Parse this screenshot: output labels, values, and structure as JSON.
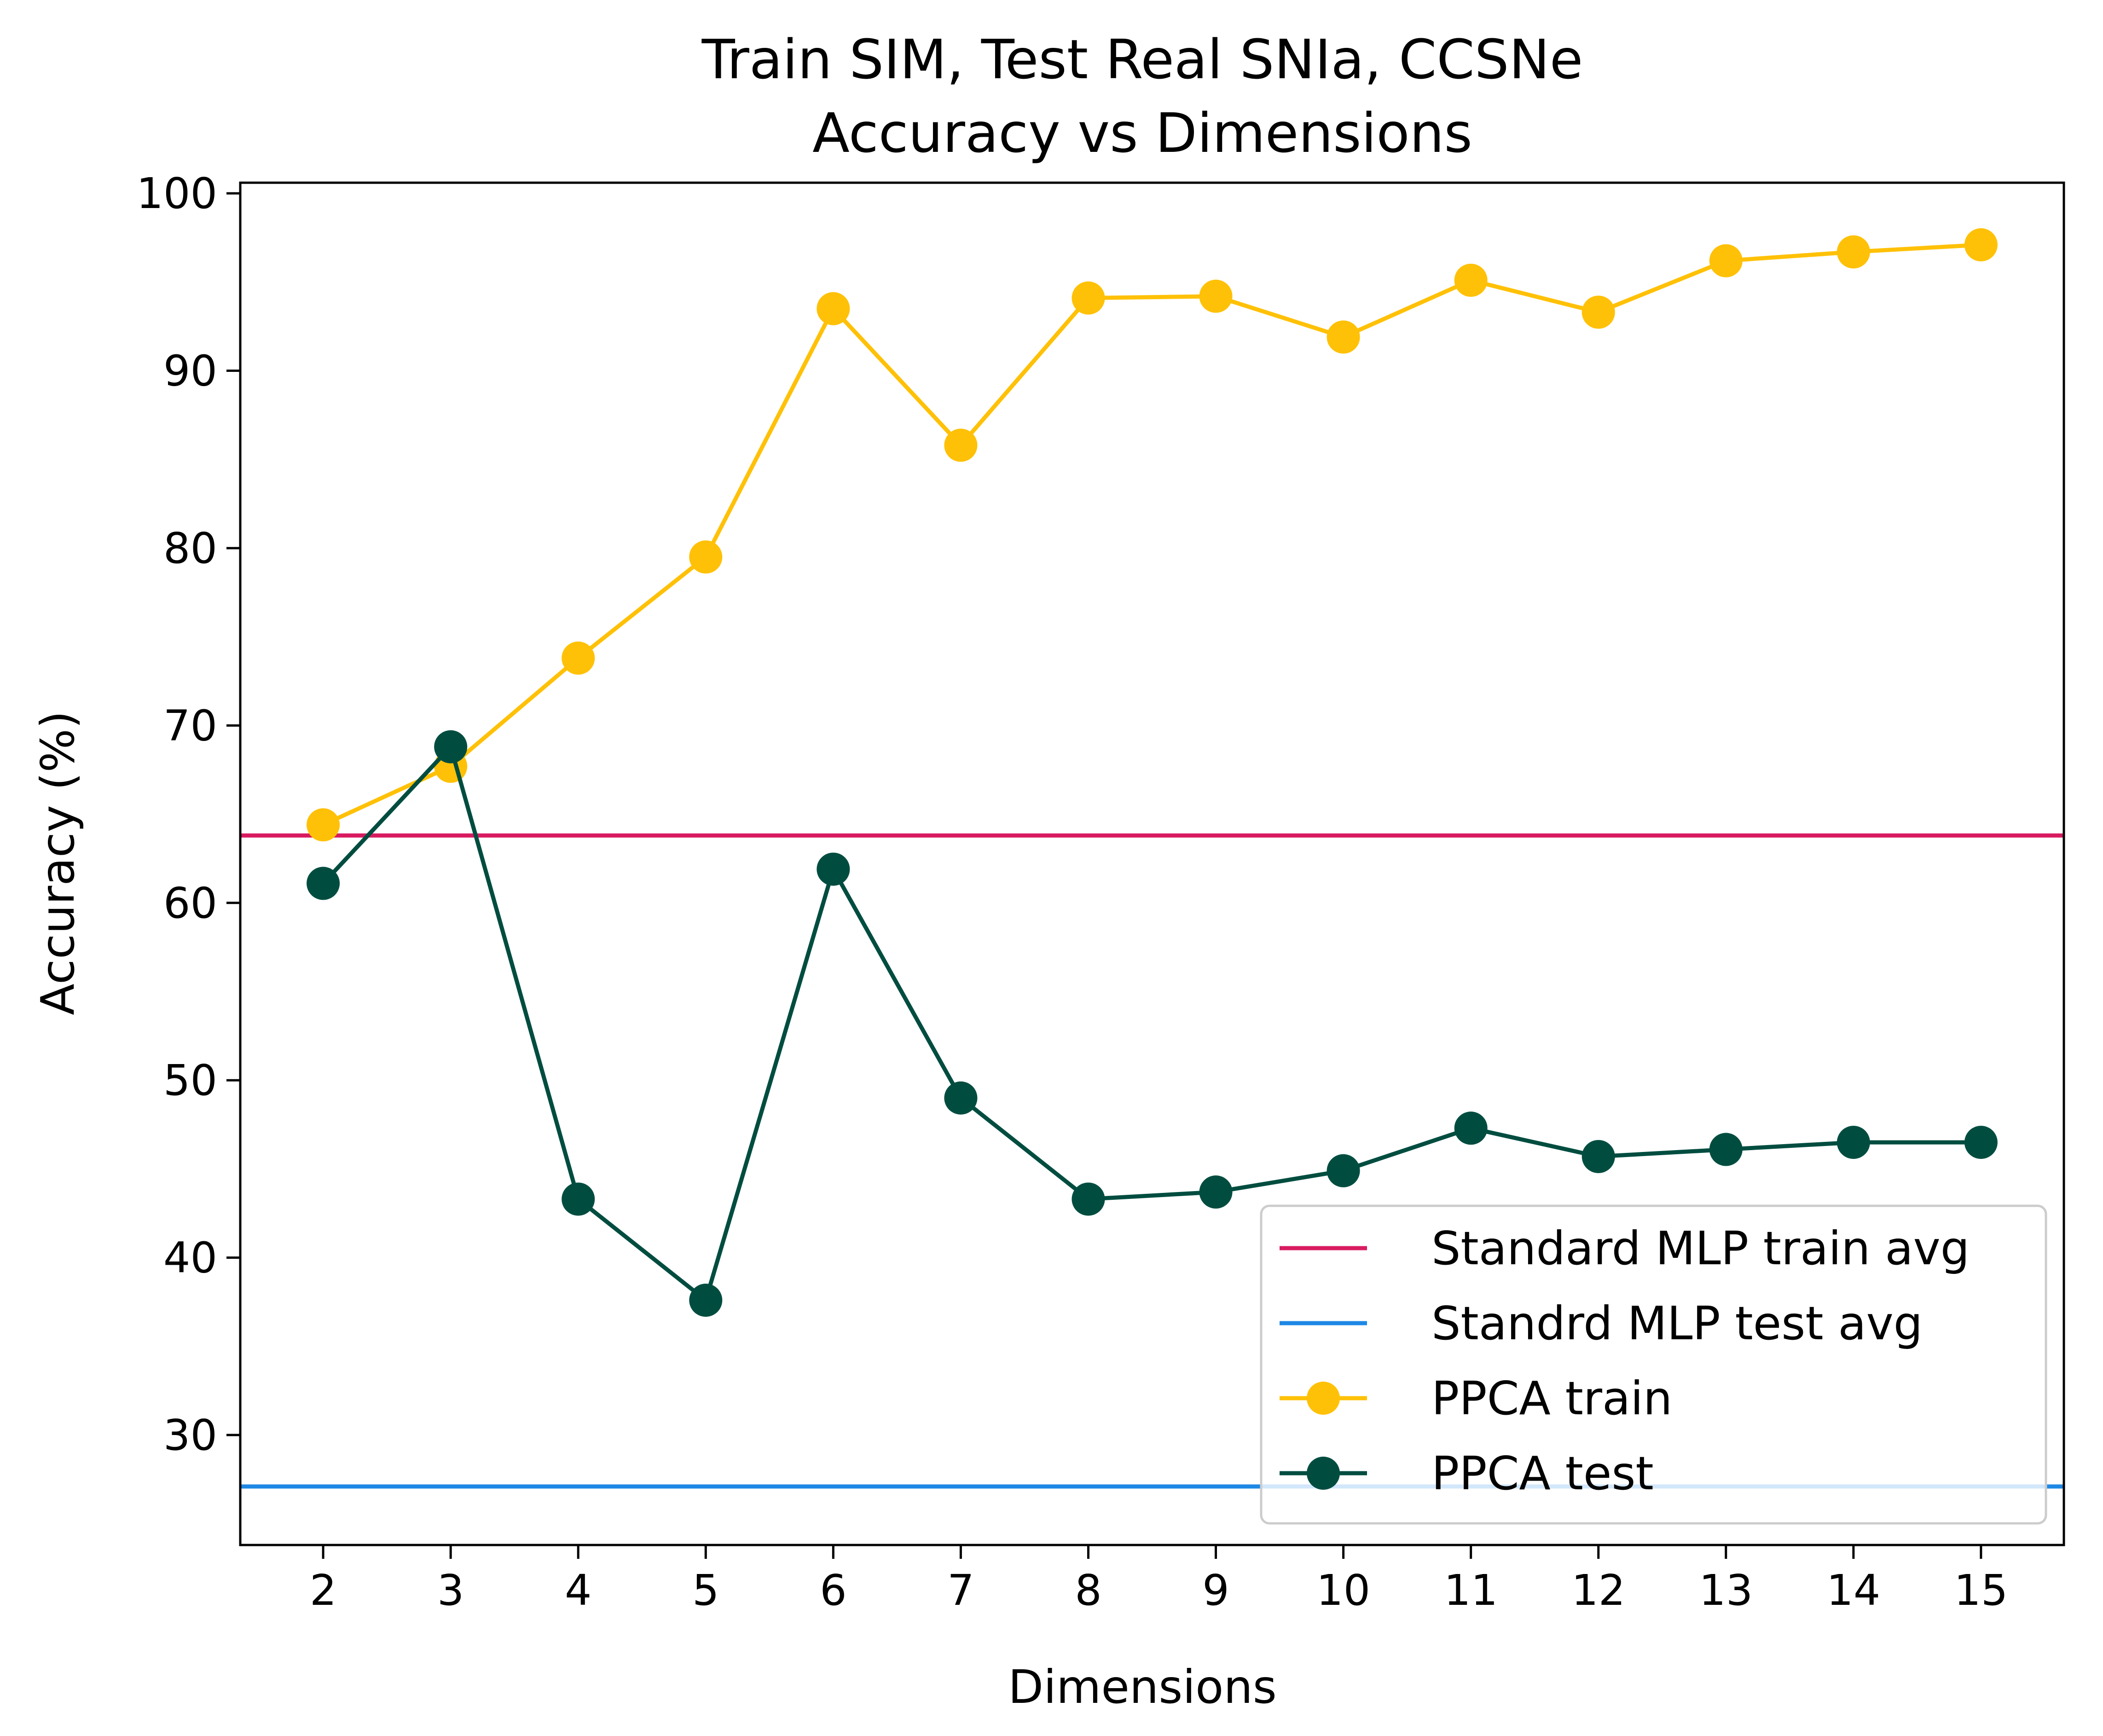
{
  "chart_data": {
    "type": "line",
    "title": "Train SIM, Test Real SNIa, CCSNe",
    "subtitle": "Accuracy vs Dimensions",
    "xlabel": "Dimensions",
    "ylabel": "Accuracy (%)",
    "x": [
      2,
      3,
      4,
      5,
      6,
      7,
      8,
      9,
      10,
      11,
      12,
      13,
      14,
      15
    ],
    "xlim": [
      1.35,
      15.65
    ],
    "ylim": [
      23.8,
      100.6
    ],
    "yticks": [
      30,
      40,
      50,
      60,
      70,
      80,
      90,
      100
    ],
    "grid": false,
    "legend_position": "lower-right",
    "hlines": [
      {
        "name": "Standard MLP train avg",
        "value": 63.8,
        "color": "#D81B60"
      },
      {
        "name": "Standrd MLP test avg",
        "value": 27.1,
        "color": "#1E88E5"
      }
    ],
    "series": [
      {
        "name": "PPCA train",
        "color": "#FFC107",
        "marker": "circle",
        "values": [
          64.4,
          67.7,
          73.8,
          79.5,
          93.5,
          85.8,
          94.1,
          94.2,
          91.9,
          95.1,
          93.3,
          96.2,
          96.7,
          97.1
        ]
      },
      {
        "name": "PPCA test",
        "color": "#004D40",
        "marker": "circle",
        "values": [
          61.1,
          68.8,
          43.3,
          37.6,
          61.9,
          49.0,
          43.3,
          43.7,
          44.9,
          47.3,
          45.7,
          46.1,
          46.5,
          46.5
        ]
      }
    ]
  }
}
